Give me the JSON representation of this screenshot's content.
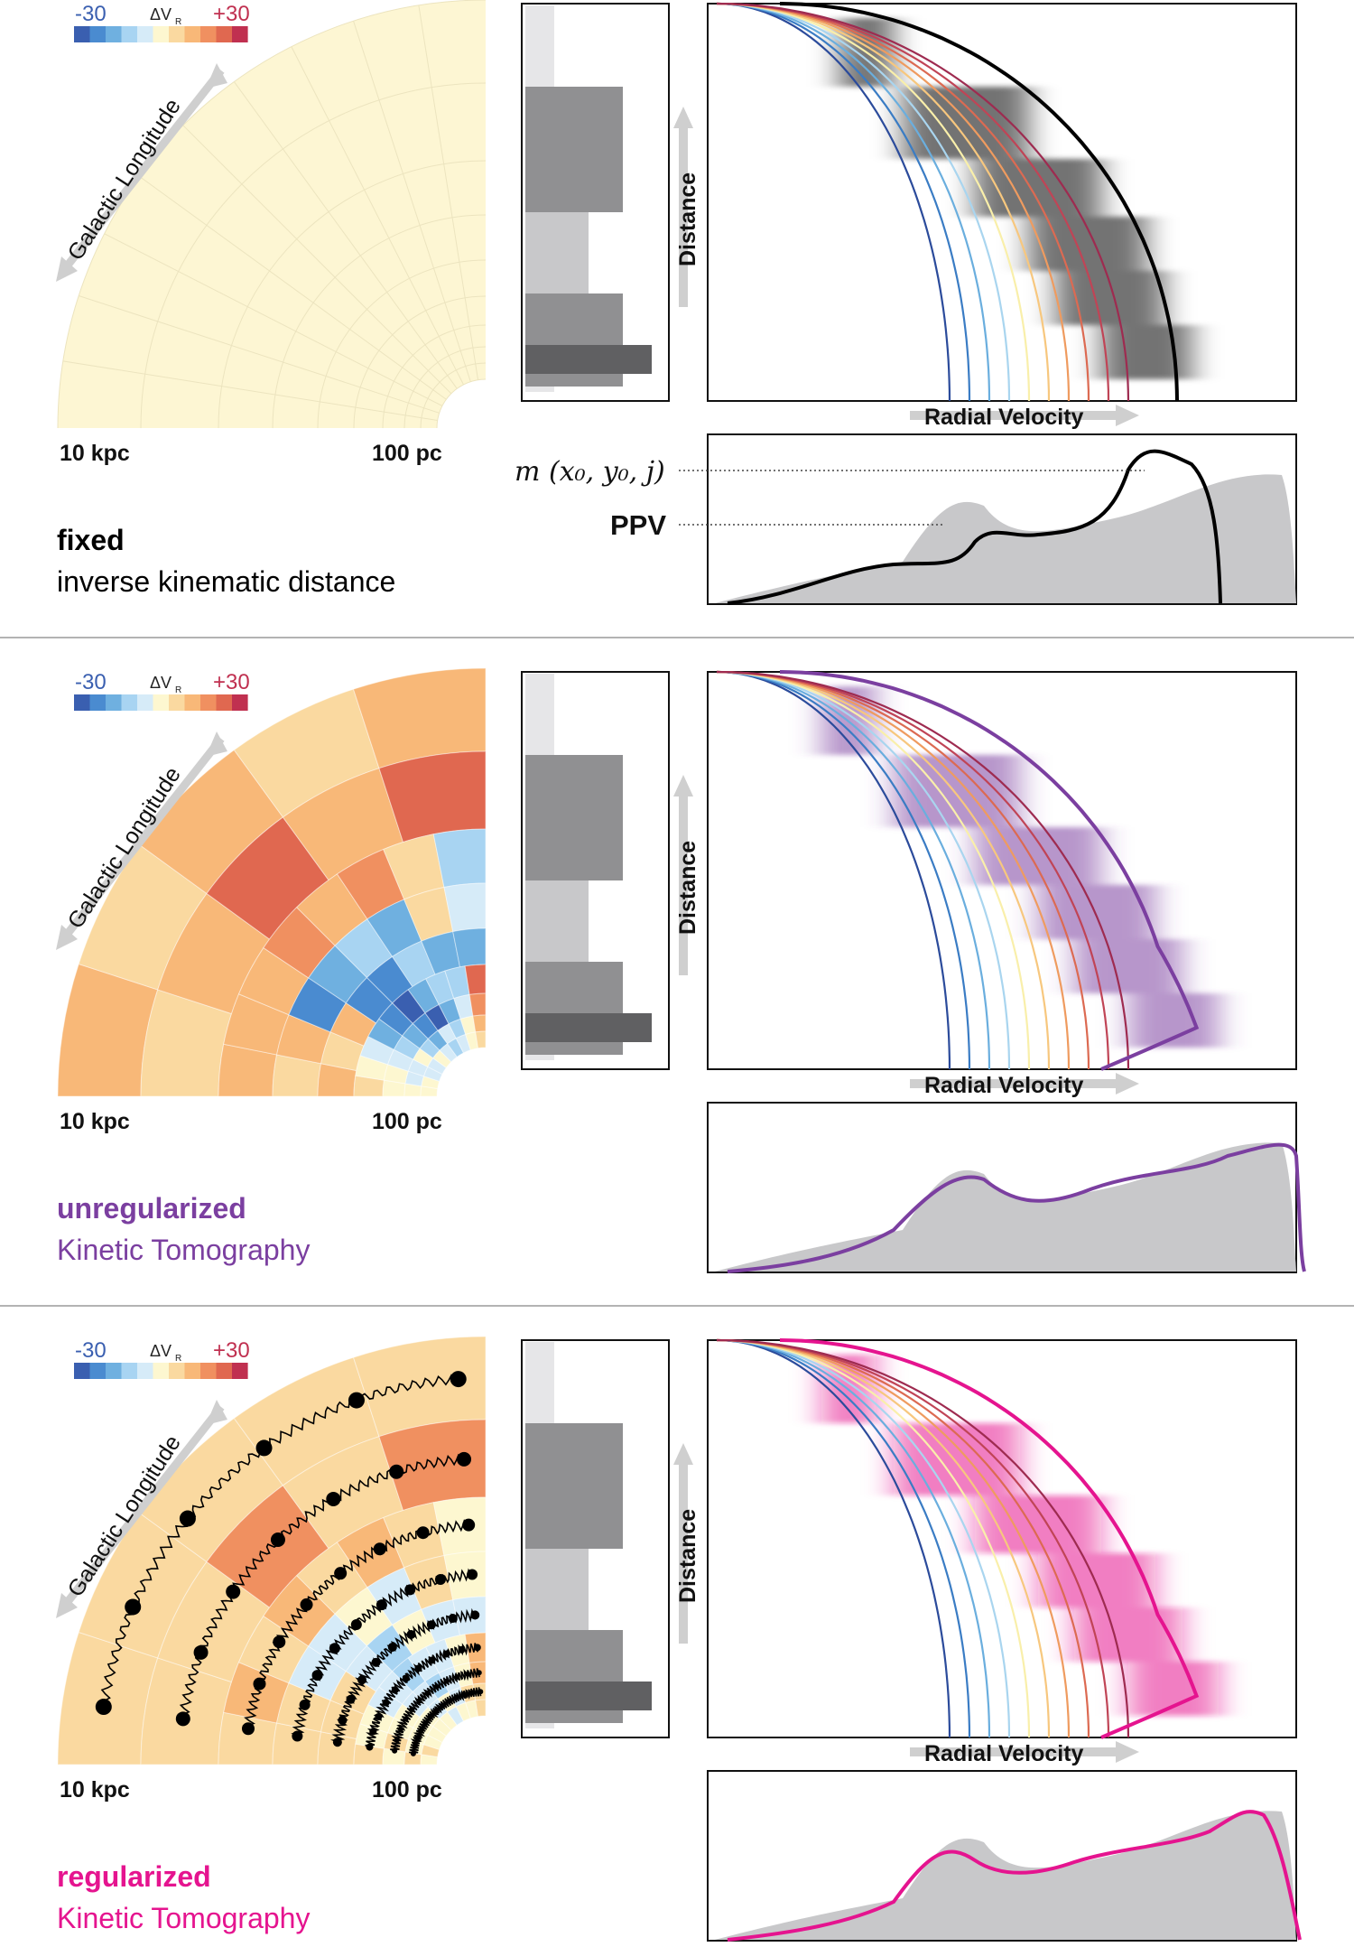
{
  "panels": [
    {
      "id": "fixed",
      "scale_left": "-30",
      "scale_mid": "ΔV",
      "scale_mid_sub": "R",
      "scale_right": "+30",
      "longitude_label": "Galactic Longitude",
      "dist_far": "10 kpc",
      "dist_near": "100 pc",
      "distance_axis": "Distance",
      "velocity_axis": "Radial Velocity",
      "method_bold": "fixed",
      "method_sub": "inverse kinematic distance",
      "label_model": "m (x₀, y₀, j)",
      "label_ppv": "PPV",
      "fit_color": "#000000",
      "label_color": "#000000"
    },
    {
      "id": "unregularized",
      "scale_left": "-30",
      "scale_mid": "ΔV",
      "scale_mid_sub": "R",
      "scale_right": "+30",
      "longitude_label": "Galactic Longitude",
      "dist_far": "10 kpc",
      "dist_near": "100 pc",
      "distance_axis": "Distance",
      "velocity_axis": "Radial Velocity",
      "method_bold": "unregularized",
      "method_sub": "Kinetic Tomography",
      "fit_color": "#7b3fa0",
      "label_color": "#7b3fa0"
    },
    {
      "id": "regularized",
      "scale_left": "-30",
      "scale_mid": "ΔV",
      "scale_mid_sub": "R",
      "scale_right": "+30",
      "longitude_label": "Galactic Longitude",
      "dist_far": "10 kpc",
      "dist_near": "100 pc",
      "distance_axis": "Distance",
      "velocity_axis": "Radial Velocity",
      "method_bold": "regularized",
      "method_sub": "Kinetic Tomography",
      "fit_color": "#e5148f",
      "label_color": "#e5148f"
    }
  ],
  "colors": {
    "diverging": [
      "#3a5fb0",
      "#4a8bd0",
      "#6fb0e0",
      "#a8d4f2",
      "#d6ebf8",
      "#fdf7d0",
      "#fad9a0",
      "#f8b878",
      "#f09060",
      "#e06850",
      "#c03050"
    ],
    "fixed_fill": "#fdf6d3",
    "tomo_fill": "#c8c8ca",
    "rotation_curves": [
      "#2b4b9b",
      "#3a7cc4",
      "#6aaede",
      "#a9d5ef",
      "#f9efaa",
      "#f7c77e",
      "#ef9b5f",
      "#dc6a52",
      "#c04456",
      "#9e2b50"
    ]
  }
}
